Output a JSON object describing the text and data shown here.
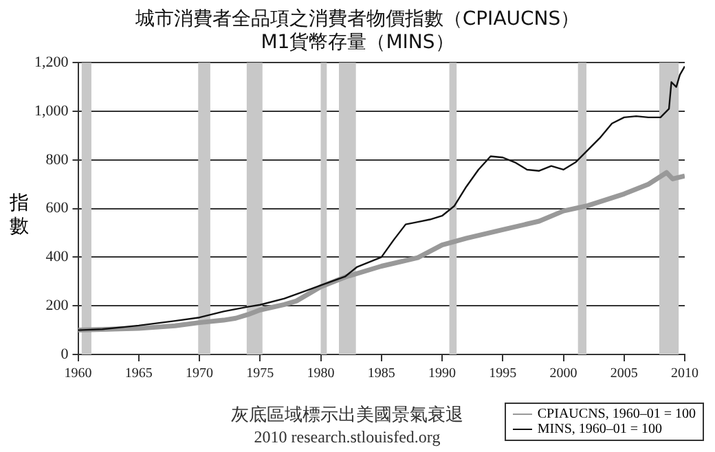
{
  "chart_data": {
    "type": "line",
    "title": "城市消費者全品項之消費者物價指數（CPIAUCNS）",
    "subtitle": "M1貨幣存量（MINS）",
    "ylabel": "指數",
    "annotations": [
      "灰底區域標示出美國景氣衰退",
      "2010 research.stlouisfed.org"
    ],
    "xlim": [
      1960,
      2010
    ],
    "xticks": [
      1960,
      1965,
      1970,
      1975,
      1980,
      1985,
      1990,
      1995,
      2000,
      2005,
      2010
    ],
    "ylim": [
      0,
      1200
    ],
    "yticks": [
      0,
      {
        "value": 200,
        "label": "200"
      },
      {
        "value": 400,
        "label": "400"
      },
      {
        "value": 600,
        "label": "600"
      },
      {
        "value": 800,
        "label": "800"
      },
      {
        "value": 1000,
        "label": "1,000"
      },
      {
        "value": 1200,
        "label": "1,200"
      }
    ],
    "grid": "y",
    "legend": "bottom right",
    "marker": "none",
    "line_style": "solid",
    "bands": [
      {
        "axis": "x",
        "from": 1960.3,
        "to": 1961.1,
        "color": "#c8c8c8"
      },
      {
        "axis": "x",
        "from": 1969.9,
        "to": 1970.9,
        "color": "#c8c8c8"
      },
      {
        "axis": "x",
        "from": 1973.9,
        "to": 1975.2,
        "color": "#c8c8c8"
      },
      {
        "axis": "x",
        "from": 1980.0,
        "to": 1980.5,
        "color": "#c8c8c8"
      },
      {
        "axis": "x",
        "from": 1981.5,
        "to": 1982.9,
        "color": "#c8c8c8"
      },
      {
        "axis": "x",
        "from": 1990.6,
        "to": 1991.2,
        "color": "#c8c8c8"
      },
      {
        "axis": "x",
        "from": 2001.2,
        "to": 2001.9,
        "color": "#c8c8c8"
      },
      {
        "axis": "x",
        "from": 2007.9,
        "to": 2009.5,
        "color": "#c8c8c8"
      }
    ],
    "series": [
      {
        "name": "CPIAUCNS, 1960–01 = 100",
        "color": "#999999",
        "x": [
          1960,
          1962,
          1965,
          1968,
          1970,
          1972,
          1973,
          1974,
          1975,
          1977,
          1978,
          1980,
          1982,
          1985,
          1988,
          1990,
          1992,
          1995,
          1998,
          2000,
          2002,
          2005,
          2007,
          2008.5,
          2009,
          2010
        ],
        "values": [
          100,
          103,
          107,
          118,
          131,
          141,
          149,
          164,
          183,
          205,
          220,
          278,
          318,
          363,
          398,
          450,
          478,
          513,
          548,
          590,
          612,
          660,
          700,
          748,
          722,
          734
        ]
      },
      {
        "name": "MINS, 1960–01 = 100",
        "color": "#111111",
        "x": [
          1960,
          1962,
          1965,
          1968,
          1970,
          1972,
          1974,
          1975,
          1977,
          1979,
          1980,
          1982,
          1983,
          1985,
          1986,
          1987,
          1988,
          1989,
          1990,
          1991,
          1992,
          1993,
          1994,
          1995,
          1996,
          1997,
          1998,
          1999,
          2000,
          2001,
          2002,
          2003,
          2004,
          2005,
          2006,
          2007,
          2008,
          2008.7,
          2008.9,
          2009.3,
          2009.6,
          2010
        ],
        "values": [
          100,
          104,
          119,
          138,
          152,
          177,
          196,
          204,
          230,
          266,
          284,
          320,
          360,
          400,
          470,
          535,
          545,
          555,
          570,
          610,
          690,
          760,
          815,
          810,
          790,
          760,
          755,
          775,
          760,
          790,
          840,
          890,
          950,
          975,
          980,
          975,
          975,
          1010,
          1120,
          1100,
          1150,
          1185
        ]
      }
    ]
  }
}
